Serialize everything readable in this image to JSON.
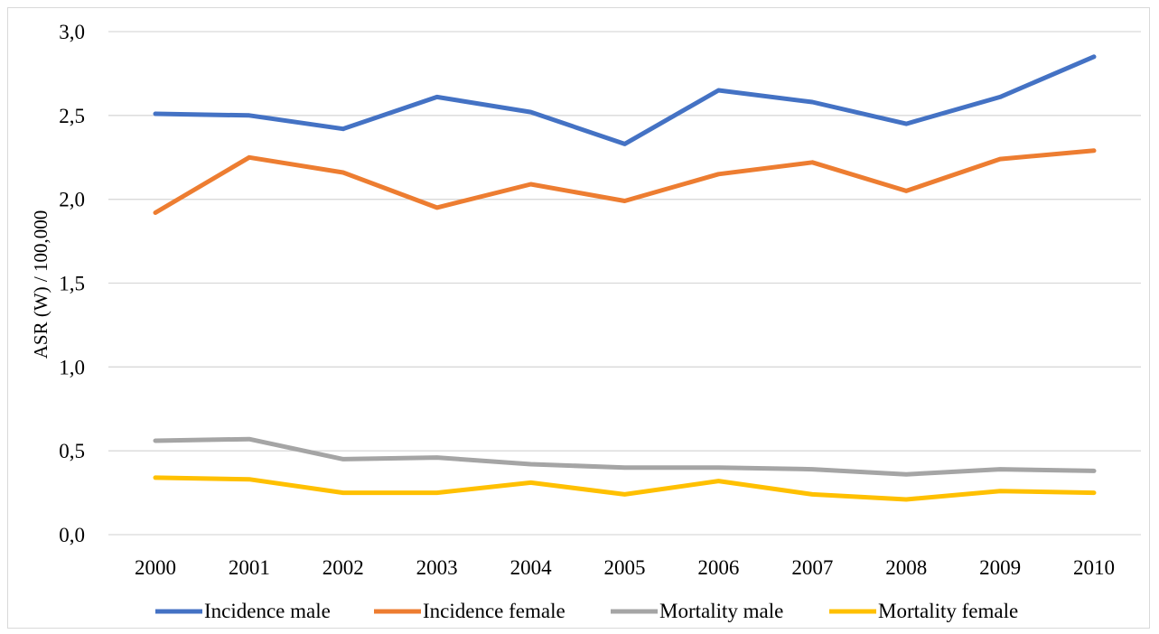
{
  "chart_data": {
    "type": "line",
    "title": "",
    "xlabel": "",
    "ylabel": "ASR (W) / 100,000",
    "categories": [
      "2000",
      "2001",
      "2002",
      "2003",
      "2004",
      "2005",
      "2006",
      "2007",
      "2008",
      "2009",
      "2010"
    ],
    "ylim": [
      0,
      3
    ],
    "y_ticks": [
      "0,0",
      "0,5",
      "1,0",
      "1,5",
      "2,0",
      "2,5",
      "3,0"
    ],
    "y_tick_values": [
      0,
      0.5,
      1.0,
      1.5,
      2.0,
      2.5,
      3.0
    ],
    "grid": "horizontal",
    "legend_position": "bottom",
    "series": [
      {
        "name": "Incidence male",
        "color": "#4472c4",
        "values": [
          2.51,
          2.5,
          2.42,
          2.61,
          2.52,
          2.33,
          2.65,
          2.58,
          2.45,
          2.61,
          2.85
        ]
      },
      {
        "name": "Incidence female",
        "color": "#ed7d31",
        "values": [
          1.92,
          2.25,
          2.16,
          1.95,
          2.09,
          1.99,
          2.15,
          2.22,
          2.05,
          2.24,
          2.29
        ]
      },
      {
        "name": "Mortality male",
        "color": "#a5a5a5",
        "values": [
          0.56,
          0.57,
          0.45,
          0.46,
          0.42,
          0.4,
          0.4,
          0.39,
          0.36,
          0.39,
          0.38
        ]
      },
      {
        "name": "Mortality female",
        "color": "#ffc000",
        "values": [
          0.34,
          0.33,
          0.25,
          0.25,
          0.31,
          0.24,
          0.32,
          0.24,
          0.21,
          0.26,
          0.25
        ]
      }
    ]
  }
}
